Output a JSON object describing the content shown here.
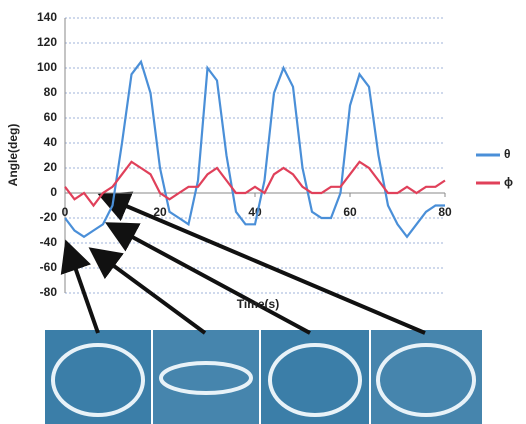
{
  "chart_data": {
    "type": "line",
    "x_label": "Time(s)",
    "y_label": "Angle(deg)",
    "x": [
      0,
      2,
      4,
      6,
      8,
      10,
      12,
      14,
      16,
      18,
      20,
      22,
      24,
      26,
      28,
      30,
      32,
      34,
      36,
      38,
      40,
      42,
      44,
      46,
      48,
      50,
      52,
      54,
      56,
      58,
      60,
      62,
      64,
      66,
      68,
      70,
      72,
      74,
      76,
      78,
      80
    ],
    "series": [
      {
        "name": "θ",
        "color": "#4a8fd8",
        "values": [
          -20,
          -30,
          -35,
          -30,
          -25,
          -10,
          40,
          95,
          105,
          80,
          20,
          -15,
          -20,
          -25,
          10,
          100,
          90,
          30,
          -15,
          -25,
          -25,
          10,
          80,
          100,
          85,
          20,
          -15,
          -20,
          -20,
          0,
          70,
          95,
          85,
          30,
          -10,
          -25,
          -35,
          -25,
          -15,
          -10,
          -10
        ]
      },
      {
        "name": "ϕ",
        "color": "#e0405a",
        "values": [
          5,
          -5,
          0,
          -10,
          0,
          5,
          15,
          25,
          20,
          15,
          0,
          -5,
          0,
          5,
          5,
          15,
          20,
          10,
          0,
          0,
          5,
          0,
          15,
          20,
          15,
          5,
          0,
          0,
          5,
          5,
          15,
          25,
          20,
          10,
          0,
          0,
          5,
          0,
          5,
          5,
          10
        ]
      }
    ],
    "xlim": [
      0,
      80
    ],
    "xticks": [
      0,
      20,
      40,
      60,
      80
    ],
    "ylim": [
      -80,
      140
    ],
    "yticks": [
      -80,
      -60,
      -40,
      -20,
      0,
      20,
      40,
      60,
      80,
      100,
      120,
      140
    ],
    "grid": true,
    "legend": "right"
  }
}
